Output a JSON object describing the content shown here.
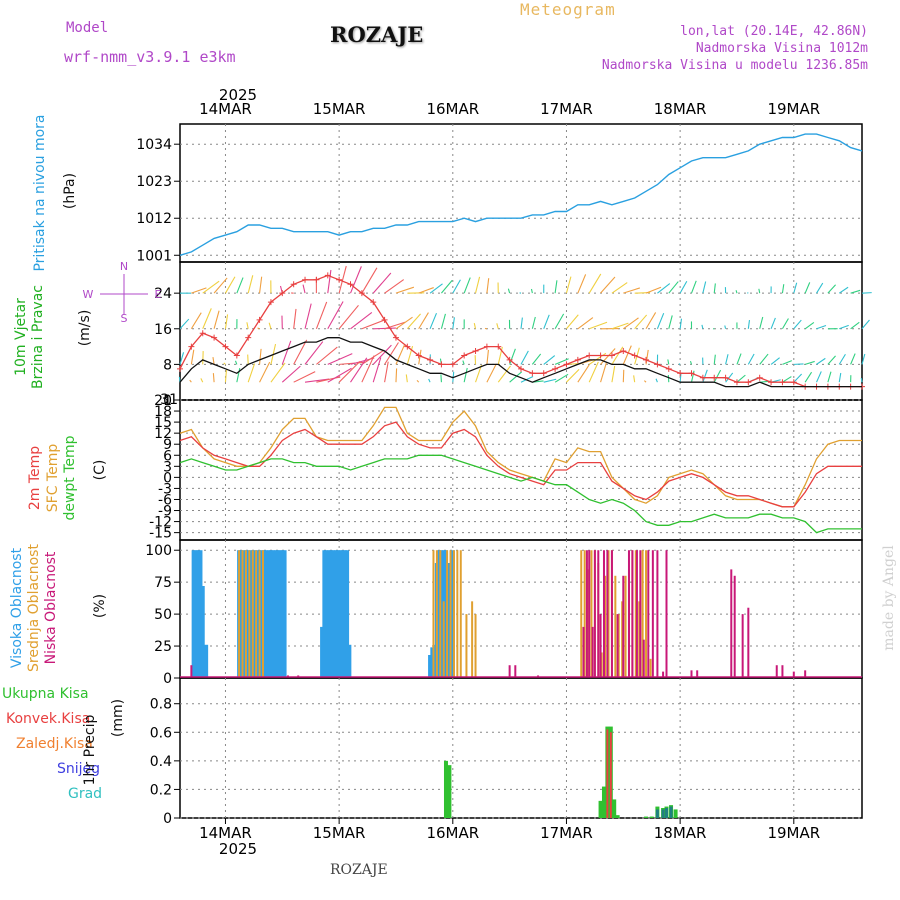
{
  "header": {
    "model_label": "Model",
    "model_name": "wrf-nmm_v3.9.1 e3km",
    "title": "ROZAJE",
    "subtitle": "Meteogram",
    "coords": "lon,lat (20.14E, 42.86N)",
    "elevation": "Nadmorska Visina 1012m",
    "model_elevation": "Nadmorska Visina u modelu 1236.85m"
  },
  "footer": {
    "station": "ROZAJE",
    "made_by": "made by Angel"
  },
  "colors": {
    "pressure": "#2aa0e0",
    "wind": "#111111",
    "gust": "#e84040",
    "t2m": "#e84040",
    "sfc": "#e0a030",
    "dew": "#30c030",
    "high": "#30a0e8",
    "mid": "#e0a030",
    "low": "#c81878",
    "total": "#30c030",
    "conv": "#e84040",
    "frozen": "#f08030",
    "snow": "#4040e0",
    "hail": "#30c0c0"
  },
  "chart_data": [
    {
      "type": "line",
      "name": "pressure",
      "ylabel_main": "Pritisak na nivou mora",
      "ylabel_unit": "(hPa)",
      "x_axis": {
        "year": "2025",
        "ticks": [
          "14MAR",
          "15MAR",
          "16MAR",
          "17MAR",
          "18MAR",
          "19MAR"
        ],
        "tick_days": [
          1,
          2,
          3,
          4,
          5,
          6
        ],
        "range_days": [
          0.6,
          6.6
        ]
      },
      "yticks": [
        1001,
        1012,
        1023,
        1034
      ],
      "ylim": [
        999,
        1040
      ],
      "x": [
        0.6,
        0.7,
        0.8,
        0.9,
        1.0,
        1.1,
        1.2,
        1.3,
        1.4,
        1.5,
        1.6,
        1.7,
        1.8,
        1.9,
        2.0,
        2.1,
        2.2,
        2.3,
        2.4,
        2.5,
        2.6,
        2.7,
        2.8,
        2.9,
        3.0,
        3.1,
        3.2,
        3.3,
        3.4,
        3.5,
        3.6,
        3.7,
        3.8,
        3.9,
        4.0,
        4.1,
        4.2,
        4.3,
        4.4,
        4.5,
        4.6,
        4.7,
        4.8,
        4.9,
        5.0,
        5.1,
        5.2,
        5.3,
        5.4,
        5.5,
        5.6,
        5.7,
        5.8,
        5.9,
        6.0,
        6.1,
        6.2,
        6.3,
        6.4,
        6.5,
        6.6
      ],
      "values": [
        1001,
        1002,
        1004,
        1006,
        1007,
        1008,
        1010,
        1010,
        1009,
        1009,
        1008,
        1008,
        1008,
        1008,
        1007,
        1008,
        1008,
        1009,
        1009,
        1010,
        1010,
        1011,
        1011,
        1011,
        1011,
        1012,
        1011,
        1012,
        1012,
        1012,
        1012,
        1013,
        1013,
        1014,
        1014,
        1016,
        1016,
        1017,
        1016,
        1017,
        1018,
        1020,
        1022,
        1025,
        1027,
        1029,
        1030,
        1030,
        1030,
        1031,
        1032,
        1034,
        1035,
        1036,
        1036,
        1037,
        1037,
        1036,
        1035,
        1033,
        1032
      ]
    },
    {
      "type": "line",
      "name": "wind",
      "ylabel_main": "10m Vjetar Brzina i Pravac",
      "ylabel_unit": "(m/s)",
      "compass": [
        "N",
        "W",
        "E",
        "S"
      ],
      "yticks": [
        0,
        8,
        16,
        24
      ],
      "ylim": [
        0,
        31
      ],
      "top_tick": "31",
      "series": [
        {
          "name": "speed",
          "values": [
            4,
            7,
            9,
            8,
            7,
            6,
            8,
            9,
            10,
            11,
            12,
            13,
            13,
            14,
            14,
            13,
            13,
            12,
            11,
            9,
            8,
            7,
            6,
            6,
            5,
            6,
            7,
            8,
            8,
            6,
            5,
            4,
            5,
            6,
            7,
            8,
            9,
            9,
            8,
            8,
            7,
            7,
            6,
            5,
            4,
            4,
            4,
            4,
            3,
            3,
            3,
            4,
            3,
            3,
            3,
            3,
            3,
            3,
            3,
            3,
            3
          ]
        },
        {
          "name": "gust",
          "values": [
            7,
            12,
            15,
            14,
            12,
            10,
            14,
            18,
            22,
            24,
            26,
            27,
            27,
            28,
            27,
            26,
            24,
            22,
            18,
            14,
            12,
            10,
            9,
            8,
            8,
            10,
            11,
            12,
            12,
            9,
            7,
            6,
            6,
            7,
            8,
            9,
            10,
            10,
            10,
            11,
            10,
            9,
            8,
            7,
            6,
            6,
            5,
            5,
            5,
            4,
            4,
            5,
            4,
            4,
            4,
            3,
            3,
            3,
            3,
            3,
            3
          ]
        }
      ]
    },
    {
      "type": "line",
      "name": "temperature",
      "ylabel_a": "2m Temp",
      "ylabel_b": "SFC Temp",
      "ylabel_c": "dewpt Temp",
      "ylabel_unit": "(C)",
      "yticks": [
        -15,
        -12,
        -9,
        -6,
        -3,
        0,
        3,
        6,
        9,
        12,
        15,
        18,
        21
      ],
      "ylim": [
        -17,
        21
      ],
      "series": [
        {
          "name": "SFC Temp",
          "values": [
            12,
            13,
            8,
            5,
            4,
            3,
            3,
            4,
            8,
            13,
            16,
            16,
            11,
            10,
            10,
            10,
            10,
            14,
            19,
            19,
            12,
            10,
            10,
            10,
            15,
            18,
            14,
            7,
            4,
            2,
            1,
            0,
            -1,
            5,
            4,
            8,
            7,
            7,
            0,
            -3,
            -6,
            -7,
            -5,
            0,
            1,
            2,
            1,
            -2,
            -5,
            -6,
            -6,
            -6,
            -7,
            -8,
            -8,
            -2,
            5,
            9,
            10,
            10,
            10
          ]
        },
        {
          "name": "2m Temp",
          "values": [
            10,
            11,
            8,
            6,
            5,
            4,
            3,
            3,
            6,
            10,
            12,
            13,
            11,
            9,
            9,
            9,
            9,
            11,
            14,
            15,
            11,
            9,
            8,
            8,
            12,
            13,
            11,
            6,
            3,
            1,
            0,
            -1,
            -2,
            2,
            2,
            4,
            4,
            4,
            -1,
            -3,
            -5,
            -6,
            -4,
            -1,
            0,
            1,
            0,
            -2,
            -4,
            -5,
            -5,
            -6,
            -7,
            -8,
            -8,
            -4,
            1,
            3,
            3,
            3,
            3
          ]
        },
        {
          "name": "dewpt Temp",
          "values": [
            4,
            5,
            4,
            3,
            2,
            2,
            3,
            4,
            5,
            5,
            4,
            4,
            3,
            3,
            3,
            2,
            3,
            4,
            5,
            5,
            5,
            6,
            6,
            6,
            5,
            4,
            3,
            2,
            1,
            0,
            -1,
            0,
            -1,
            -2,
            -2,
            -4,
            -6,
            -7,
            -6,
            -7,
            -9,
            -12,
            -13,
            -13,
            -12,
            -12,
            -11,
            -10,
            -11,
            -11,
            -11,
            -10,
            -10,
            -11,
            -11,
            -12,
            -15,
            -14,
            -14,
            -14,
            -14
          ]
        }
      ]
    },
    {
      "type": "bar",
      "name": "cloud",
      "ylabel_a": "Visoka Oblacnost",
      "ylabel_b": "Srednja Oblacnost",
      "ylabel_c": "Niska Oblacnost",
      "ylabel_unit": "(%)",
      "yticks": [
        0,
        25,
        50,
        75,
        100
      ],
      "ylim": [
        0,
        108
      ],
      "series": [
        {
          "name": "Visoka",
          "x": [
            0.72,
            0.74,
            0.76,
            0.78,
            0.8,
            0.83,
            1.12,
            1.14,
            1.16,
            1.18,
            1.2,
            1.22,
            1.24,
            1.26,
            1.28,
            1.3,
            1.32,
            1.34,
            1.36,
            1.38,
            1.4,
            1.42,
            1.44,
            1.46,
            1.48,
            1.5,
            1.52,
            1.85,
            1.87,
            1.89,
            1.91,
            1.93,
            1.95,
            1.97,
            1.99,
            2.01,
            2.03,
            2.05,
            2.07,
            2.09,
            2.8,
            2.82,
            2.84,
            2.86,
            2.88,
            2.9,
            2.92,
            2.94,
            2.96,
            2.98,
            3.0
          ],
          "values": [
            100,
            100,
            100,
            100,
            72,
            26,
            100,
            100,
            100,
            100,
            100,
            100,
            100,
            100,
            100,
            100,
            100,
            100,
            100,
            100,
            100,
            100,
            100,
            100,
            100,
            100,
            100,
            40,
            100,
            100,
            100,
            100,
            100,
            100,
            100,
            100,
            100,
            100,
            100,
            26,
            18,
            24,
            26,
            90,
            100,
            100,
            100,
            100,
            90,
            80,
            100
          ]
        },
        {
          "name": "Srednja",
          "x": [
            1.12,
            1.15,
            1.18,
            1.21,
            1.24,
            1.27,
            1.3,
            1.33,
            2.83,
            2.86,
            2.89,
            2.92,
            2.95,
            2.98,
            3.01,
            3.04,
            3.07,
            3.12,
            3.17,
            3.2,
            4.13,
            4.16,
            4.19,
            4.22,
            4.25,
            4.28,
            4.31,
            4.34,
            4.37,
            4.4,
            4.43,
            4.46,
            4.49,
            4.52,
            4.55,
            4.58,
            4.61,
            4.64,
            4.67,
            4.7,
            4.74
          ],
          "values": [
            100,
            100,
            100,
            100,
            100,
            100,
            100,
            100,
            100,
            100,
            100,
            60,
            100,
            100,
            100,
            100,
            100,
            50,
            60,
            50,
            100,
            100,
            85,
            100,
            100,
            90,
            20,
            80,
            100,
            100,
            80,
            50,
            60,
            80,
            85,
            100,
            100,
            60,
            100,
            100,
            15
          ]
        },
        {
          "name": "Niska",
          "x": [
            0.7,
            1.55,
            1.64,
            3.5,
            3.55,
            3.75,
            4.15,
            4.18,
            4.2,
            4.23,
            4.25,
            4.28,
            4.3,
            4.33,
            4.36,
            4.4,
            4.45,
            4.5,
            4.55,
            4.58,
            4.62,
            4.65,
            4.68,
            4.72,
            4.76,
            4.8,
            4.85,
            4.88,
            5.1,
            5.15,
            5.45,
            5.48,
            5.55,
            5.6,
            5.85,
            5.9,
            6.0,
            6.1
          ],
          "values": [
            10,
            2,
            2,
            10,
            10,
            2,
            40,
            100,
            100,
            40,
            100,
            100,
            50,
            100,
            100,
            100,
            50,
            80,
            100,
            100,
            100,
            100,
            30,
            100,
            100,
            100,
            5,
            100,
            6,
            6,
            85,
            80,
            50,
            55,
            10,
            10,
            5,
            6
          ]
        }
      ]
    },
    {
      "type": "bar",
      "name": "precip",
      "legend": [
        "Ukupna Kisa",
        "Konvek.Kisa",
        "Zaledj.Kisa",
        "Snijeg",
        "Grad"
      ],
      "ylabel_main": "1hr Precip",
      "ylabel_unit": "(mm)",
      "yticks": [
        0,
        0.2,
        0.4,
        0.6,
        0.8
      ],
      "ylim": [
        0,
        0.98
      ],
      "bars_total": {
        "x": [
          2.94,
          2.97,
          4.3,
          4.33,
          4.36,
          4.39,
          4.42,
          4.45,
          4.7,
          4.75,
          4.8,
          4.85,
          4.88,
          4.92,
          4.96
        ],
        "values": [
          0.4,
          0.37,
          0.12,
          0.22,
          0.64,
          0.64,
          0.13,
          0.02,
          0.01,
          0.01,
          0.08,
          0.07,
          0.08,
          0.09,
          0.06
        ]
      },
      "bars_conv": {
        "x": [
          4.36,
          4.39
        ],
        "values": [
          0.62,
          0.6
        ]
      },
      "bars_hail": {
        "x": [
          4.8,
          4.85,
          4.88,
          4.92
        ],
        "values": [
          0.06,
          0.06,
          0.07,
          0.08
        ]
      }
    }
  ]
}
